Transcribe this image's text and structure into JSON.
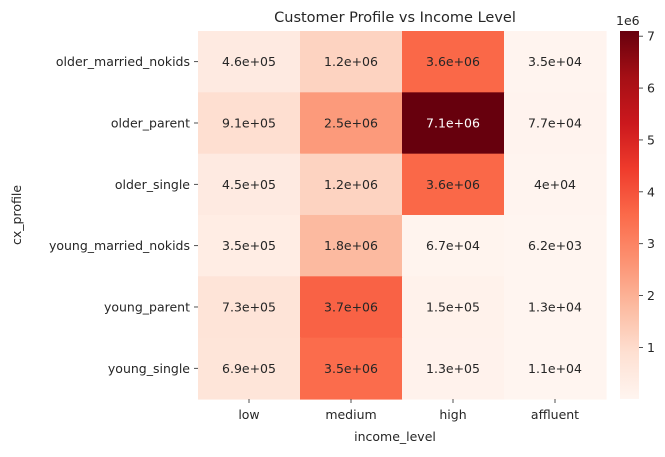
{
  "chart_data": {
    "type": "heatmap",
    "title": "Customer Profile vs Income Level",
    "xlabel": "income_level",
    "ylabel": "cx_profile",
    "x_categories": [
      "low",
      "medium",
      "high",
      "affluent"
    ],
    "y_categories": [
      "older_married_nokids",
      "older_parent",
      "older_single",
      "young_married_nokids",
      "young_parent",
      "young_single"
    ],
    "values": [
      [
        460000,
        1200000,
        3600000,
        35000
      ],
      [
        910000,
        2500000,
        7100000,
        77000
      ],
      [
        450000,
        1200000,
        3600000,
        40000
      ],
      [
        350000,
        1800000,
        67000,
        6200
      ],
      [
        730000,
        3700000,
        150000,
        13000
      ],
      [
        690000,
        3500000,
        130000,
        11000
      ]
    ],
    "annotations": [
      [
        "4.6e+05",
        "1.2e+06",
        "3.6e+06",
        "3.5e+04"
      ],
      [
        "9.1e+05",
        "2.5e+06",
        "7.1e+06",
        "7.7e+04"
      ],
      [
        "4.5e+05",
        "1.2e+06",
        "3.6e+06",
        "4e+04"
      ],
      [
        "3.5e+05",
        "1.8e+06",
        "6.7e+04",
        "6.2e+03"
      ],
      [
        "7.3e+05",
        "3.7e+06",
        "1.5e+05",
        "1.3e+04"
      ],
      [
        "6.9e+05",
        "3.5e+06",
        "1.3e+05",
        "1.1e+04"
      ]
    ],
    "colormap": "Reds",
    "colorbar": {
      "vmin": 6200,
      "vmax": 7100000,
      "ticks": [
        1,
        2,
        3,
        4,
        5,
        6,
        7
      ],
      "offset_label": "1e6"
    }
  }
}
